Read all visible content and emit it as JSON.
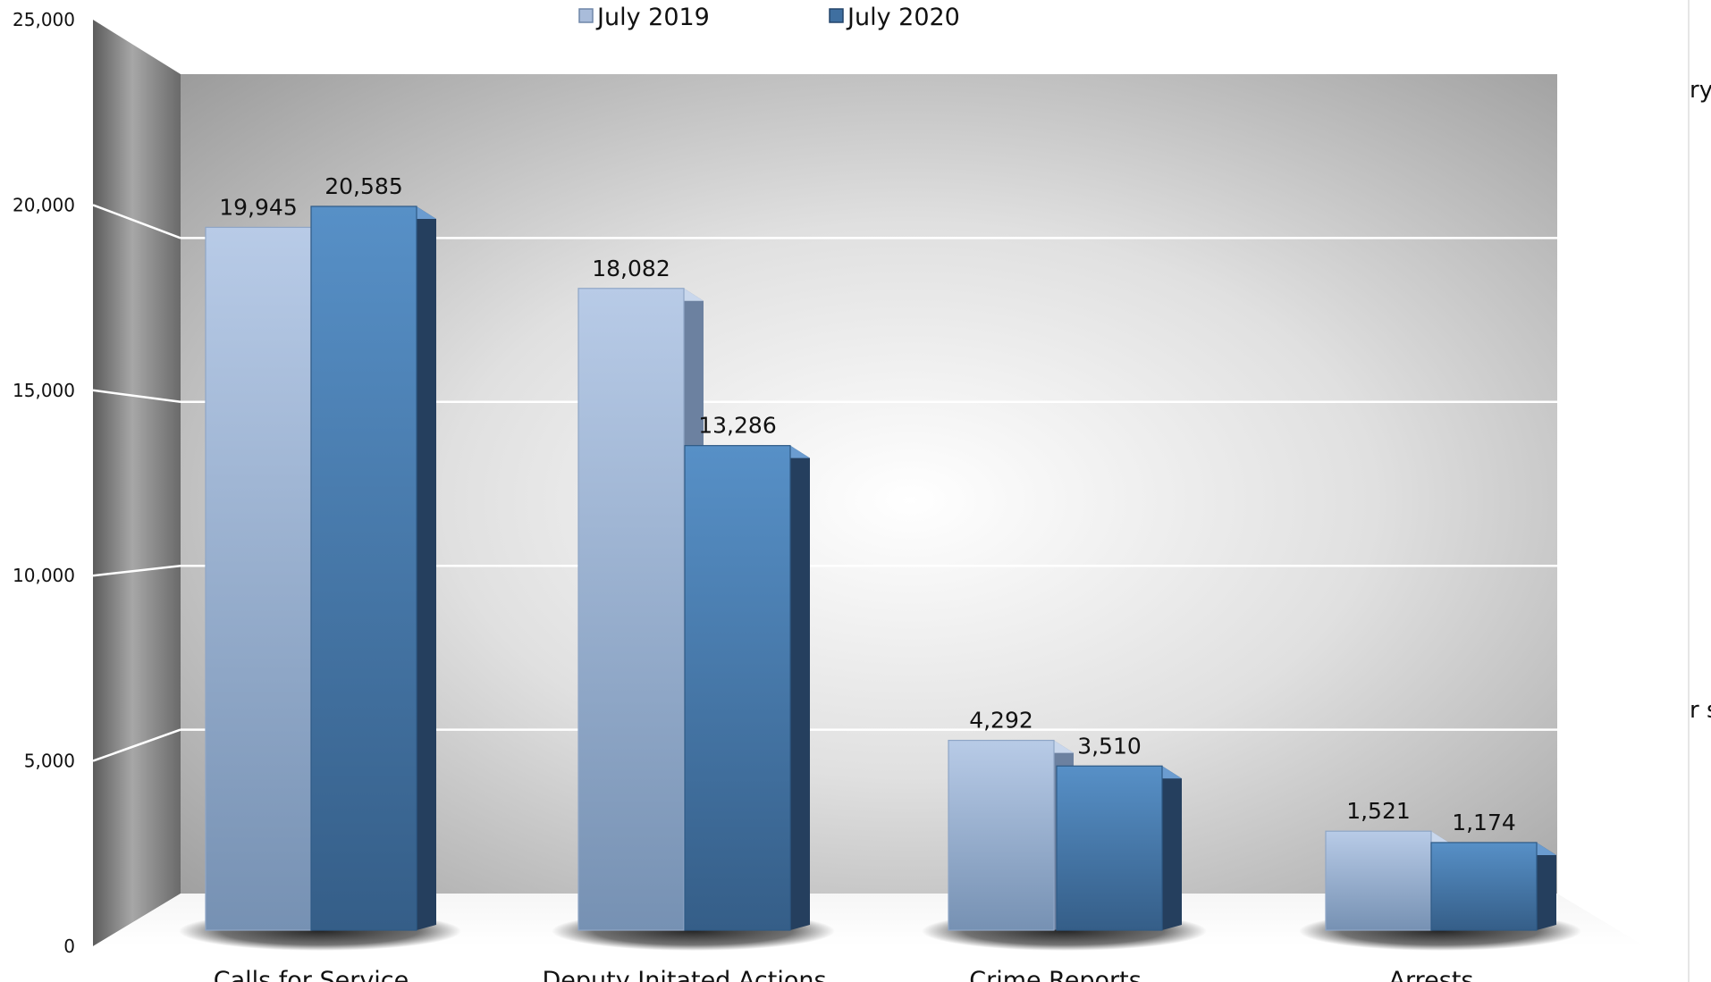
{
  "chart_data": {
    "type": "bar",
    "title": "",
    "xlabel": "",
    "ylabel": "",
    "categories": [
      "Calls for Service",
      "Deputy Initated Actions",
      "Crime Reports",
      "Arrests"
    ],
    "series": [
      {
        "name": "July 2019",
        "values": [
          19945,
          18082,
          4292,
          1521
        ],
        "labels": [
          "19,945",
          "18,082",
          "4,292",
          "1,521"
        ],
        "color": "#a9bcda"
      },
      {
        "name": "July 2020",
        "values": [
          20585,
          13286,
          3510,
          1174
        ],
        "labels": [
          "20,585",
          "13,286",
          "3,510",
          "1,174"
        ],
        "color": "#4a7fb2"
      }
    ],
    "ylim": [
      0,
      25000
    ],
    "yticks": [
      0,
      5000,
      10000,
      15000,
      20000,
      25000
    ],
    "ytick_labels": [
      "0",
      "5,000",
      "10,000",
      "15,000",
      "20,000",
      "25,000"
    ],
    "grid": true,
    "legend_position": "top-center",
    "style": "3d-clustered-column"
  },
  "stray_text": [
    "ry",
    "r s"
  ]
}
